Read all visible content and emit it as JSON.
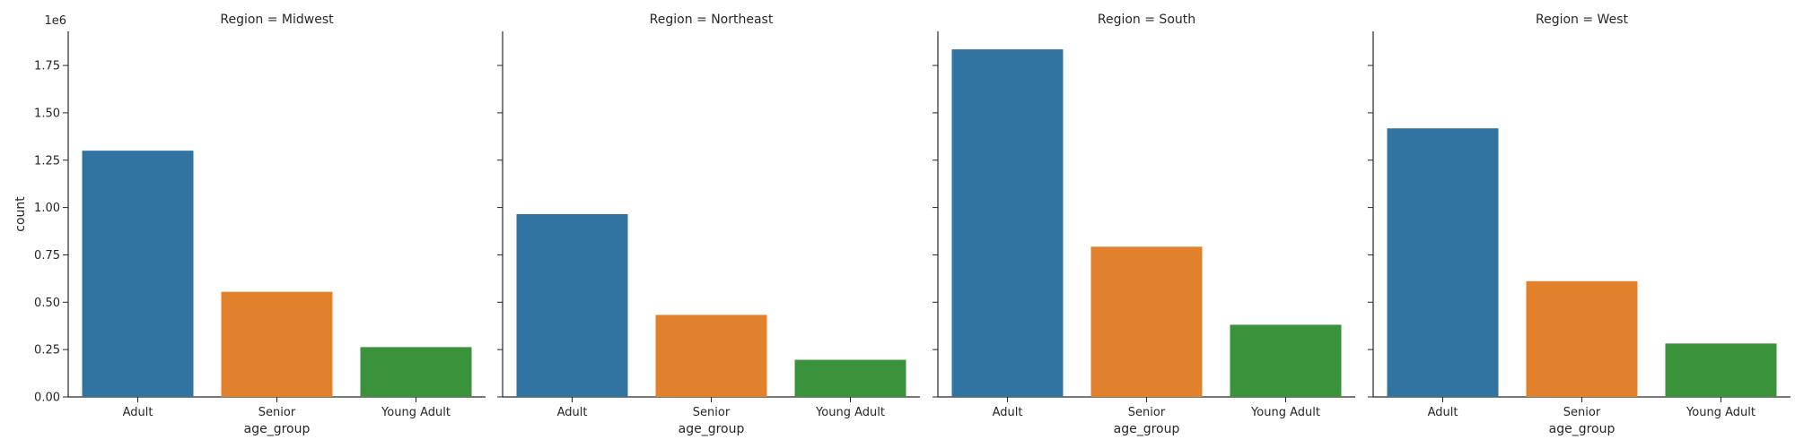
{
  "chart_data": {
    "type": "bar",
    "facet_variable": "Region",
    "facet_title_template": "Region = {value}",
    "xlabel": "age_group",
    "ylabel": "count",
    "y_offset_label": "1e6",
    "y_scale": 1000000,
    "ylim": [
      0,
      1.93
    ],
    "yticks": [
      0.0,
      0.25,
      0.5,
      0.75,
      1.0,
      1.25,
      1.5,
      1.75
    ],
    "ytick_labels": [
      "0.00",
      "0.25",
      "0.50",
      "0.75",
      "1.00",
      "1.25",
      "1.50",
      "1.75"
    ],
    "categories": [
      "Adult",
      "Senior",
      "Young Adult"
    ],
    "colors": {
      "Adult": "#3274a1",
      "Senior": "#e1812c",
      "Young Adult": "#3a923a"
    },
    "facets": [
      {
        "region": "Midwest",
        "title": "Region = Midwest",
        "values": [
          1300000,
          555000,
          263000
        ]
      },
      {
        "region": "Northeast",
        "title": "Region = Northeast",
        "values": [
          965000,
          433000,
          196000
        ]
      },
      {
        "region": "South",
        "title": "Region = South",
        "values": [
          1835000,
          793000,
          381000
        ]
      },
      {
        "region": "West",
        "title": "Region = West",
        "values": [
          1418000,
          611000,
          282000
        ]
      }
    ]
  }
}
